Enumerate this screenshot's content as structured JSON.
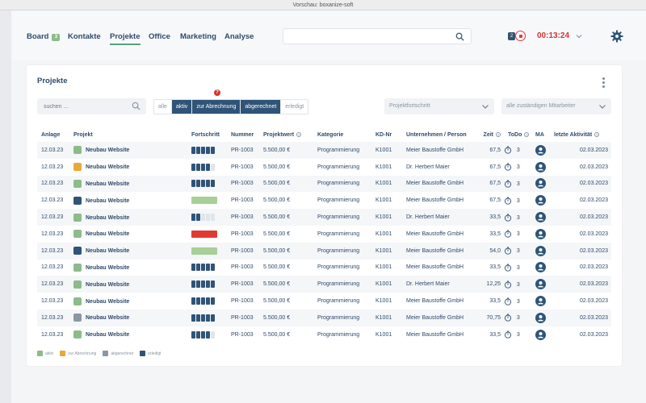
{
  "window": {
    "title": "Vorschau: boxanize-soft"
  },
  "nav": {
    "items": [
      {
        "label": "Board",
        "badge": "3"
      },
      {
        "label": "Kontakte"
      },
      {
        "label": "Projekte",
        "active": true
      },
      {
        "label": "Office"
      },
      {
        "label": "Marketing"
      },
      {
        "label": "Analyse"
      }
    ],
    "search_placeholder": "",
    "notification_count": "2",
    "timer": "00:13:24"
  },
  "page": {
    "title": "Projekte",
    "search_placeholder": "suchen ...",
    "filters": [
      "alle",
      "aktiv",
      "zur Abrechnung",
      "abgerechnet",
      "erledigt"
    ],
    "active_filters": [
      "aktiv",
      "zur Abrechnung",
      "abgerechnet"
    ],
    "help_badge": "?",
    "progress_select": "Projektfortschritt",
    "staff_select": "alle zuständigen Mitarbeiter"
  },
  "table": {
    "columns": [
      "Anlage",
      "Projekt",
      "Fortschritt",
      "Nummer",
      "Projektwert",
      "Kategorie",
      "KD-Nr",
      "Unternehmen / Person",
      "Zeit",
      "ToDo",
      "MA",
      "letzte Aktivität"
    ],
    "rows": [
      {
        "anlage": "12.03.23",
        "type": "aktiv",
        "projekt": "Neubau Website",
        "progress_kind": "segments",
        "progress_filled": 5,
        "nummer": "PR-1003",
        "wert": "5.500,00 €",
        "kategorie": "Programmierung",
        "kdnr": "K1001",
        "kontakt": "Meier Baustoffe GmbH",
        "zeit": "67,5",
        "todo": "3",
        "aktivitaet": "02.03.2023"
      },
      {
        "anlage": "12.03.23",
        "type": "zur Abrechnung",
        "projekt": "Neubau Website",
        "progress_kind": "segments",
        "progress_filled": 4,
        "nummer": "PR-1003",
        "wert": "5.500,00 €",
        "kategorie": "Programmierung",
        "kdnr": "K1001",
        "kontakt": "Dr. Herbert Maier",
        "zeit": "67,5",
        "todo": "3",
        "aktivitaet": "02.03.2023"
      },
      {
        "anlage": "12.03.23",
        "type": "aktiv",
        "projekt": "Neubau Website",
        "progress_kind": "segments",
        "progress_filled": 5,
        "nummer": "PR-1003",
        "wert": "5.500,00 €",
        "kategorie": "Programmierung",
        "kdnr": "K1001",
        "kontakt": "Meier Baustoffe GmbH",
        "zeit": "67,5",
        "todo": "3",
        "aktivitaet": "02.03.2023"
      },
      {
        "anlage": "12.03.23",
        "type": "erledigt",
        "projekt": "Neubau Website",
        "progress_kind": "bar",
        "progress_color": "#a9cf98",
        "nummer": "PR-1003",
        "wert": "5.500,00 €",
        "kategorie": "Programmierung",
        "kdnr": "K1001",
        "kontakt": "Meier Baustoffe GmbH",
        "zeit": "67,5",
        "todo": "3",
        "aktivitaet": "02.03.2023"
      },
      {
        "anlage": "12.03.23",
        "type": "aktiv",
        "projekt": "Neubau Website",
        "progress_kind": "segments",
        "progress_filled": 2,
        "nummer": "PR-1003",
        "wert": "5.500,00 €",
        "kategorie": "Programmierung",
        "kdnr": "K1001",
        "kontakt": "Dr. Herbert Maier",
        "zeit": "33,5",
        "todo": "3",
        "aktivitaet": "02.03.2023"
      },
      {
        "anlage": "12.03.23",
        "type": "aktiv",
        "projekt": "Neubau Website",
        "progress_kind": "bar",
        "progress_color": "#e23a32",
        "nummer": "PR-1003",
        "wert": "5.500,00 €",
        "kategorie": "Programmierung",
        "kdnr": "K1001",
        "kontakt": "Meier Baustoffe GmbH",
        "zeit": "33,5",
        "todo": "3",
        "aktivitaet": "02.03.2023"
      },
      {
        "anlage": "12.03.23",
        "type": "erledigt",
        "projekt": "Neubau Website",
        "progress_kind": "bar",
        "progress_color": "#a9cf98",
        "nummer": "PR-1003",
        "wert": "5.500,00 €",
        "kategorie": "Programmierung",
        "kdnr": "K1001",
        "kontakt": "Meier Baustoffe GmbH",
        "zeit": "54,0",
        "todo": "3",
        "aktivitaet": "02.03.2023"
      },
      {
        "anlage": "12.03.23",
        "type": "aktiv",
        "projekt": "Neubau Website",
        "progress_kind": "segments",
        "progress_filled": 5,
        "nummer": "PR-1003",
        "wert": "5.500,00 €",
        "kategorie": "Programmierung",
        "kdnr": "K1001",
        "kontakt": "Meier Baustoffe GmbH",
        "zeit": "33,5",
        "todo": "3",
        "aktivitaet": "02.03.2023"
      },
      {
        "anlage": "12.03.23",
        "type": "aktiv",
        "projekt": "Neubau Website",
        "progress_kind": "segments",
        "progress_filled": 5,
        "nummer": "PR-1003",
        "wert": "5.500,00 €",
        "kategorie": "Programmierung",
        "kdnr": "K1001",
        "kontakt": "Dr. Herbert Maier",
        "zeit": "12,25",
        "todo": "3",
        "aktivitaet": "02.03.2023"
      },
      {
        "anlage": "12.03.23",
        "type": "aktiv",
        "projekt": "Neubau Website",
        "progress_kind": "segments",
        "progress_filled": 5,
        "nummer": "PR-1003",
        "wert": "5.500,00 €",
        "kategorie": "Programmierung",
        "kdnr": "K1001",
        "kontakt": "Meier Baustoffe GmbH",
        "zeit": "33,5",
        "todo": "3",
        "aktivitaet": "02.03.2023"
      },
      {
        "anlage": "12.03.23",
        "type": "abgerechnet",
        "projekt": "Neubau Website",
        "progress_kind": "segments",
        "progress_filled": 5,
        "nummer": "PR-1003",
        "wert": "5.500,00 €",
        "kategorie": "Programmierung",
        "kdnr": "K1001",
        "kontakt": "Meier Baustoffe GmbH",
        "zeit": "70,75",
        "todo": "3",
        "aktivitaet": "02.03.2023"
      },
      {
        "anlage": "12.03.23",
        "type": "aktiv",
        "projekt": "Neubau Website",
        "progress_kind": "segments",
        "progress_filled": 4,
        "nummer": "PR-1003",
        "wert": "5.500,00 €",
        "kategorie": "Programmierung",
        "kdnr": "K1001",
        "kontakt": "Meier Baustoffe GmbH",
        "zeit": "33,5",
        "todo": "3",
        "aktivitaet": "02.03.2023"
      }
    ]
  },
  "legend": [
    {
      "label": "aktiv",
      "color": "#8dbb8a"
    },
    {
      "label": "zur Abrechnung",
      "color": "#e8a83a"
    },
    {
      "label": "abgerechnet",
      "color": "#8a97a5"
    },
    {
      "label": "erledigt",
      "color": "#2f5478"
    }
  ],
  "colors": {
    "accent": "#2f5478",
    "timer": "#d33434",
    "active_underline": "#5aa27a"
  },
  "icons": {
    "search": "search-icon",
    "settings": "gear-icon",
    "menu": "more-vertical-icon",
    "clock": "stopwatch-icon",
    "user": "user-avatar-icon",
    "chevron": "chevron-down-icon"
  }
}
